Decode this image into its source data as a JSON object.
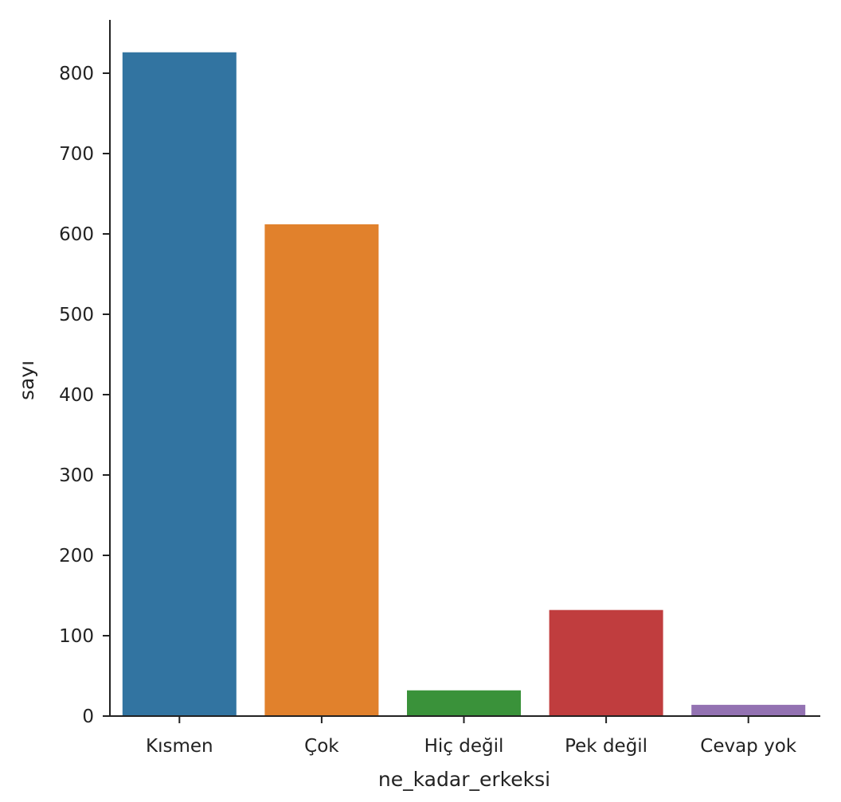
{
  "chart_data": {
    "type": "bar",
    "title": "",
    "xlabel": "ne_kadar_erkeksi",
    "ylabel": "sayı",
    "categories": [
      "Kısmen",
      "Çok",
      "Hiç değil",
      "Pek değil",
      "Cevap yok"
    ],
    "values": [
      826,
      612,
      32,
      132,
      14
    ],
    "colors": [
      "#3274a1",
      "#e1812c",
      "#3a923a",
      "#c03d3e",
      "#9372b2"
    ],
    "ylim": [
      0,
      870
    ],
    "yticks": [
      0,
      100,
      200,
      300,
      400,
      500,
      600,
      700,
      800
    ],
    "grid": false,
    "legend": "none"
  }
}
